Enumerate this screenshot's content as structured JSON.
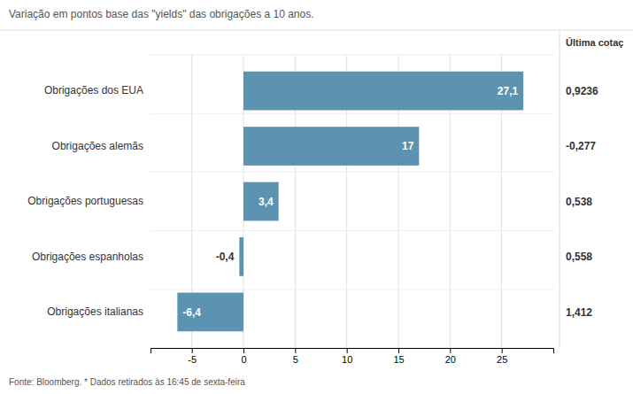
{
  "chart_data": {
    "type": "bar",
    "orientation": "horizontal",
    "subtitle": "Variação em pontos base das \"yields\" das obrigações a 10 anos.",
    "footer": "Fonte: Bloomberg.  * Dados retirados às 16:45 de sexta-feira",
    "categories": [
      "Obrigações dos EUA",
      "Obrigações alemãs",
      "Obrigações portuguesas",
      "Obrigações espanholas",
      "Obrigações italianas"
    ],
    "values": [
      27.1,
      17.0,
      3.4,
      -0.4,
      -6.4
    ],
    "value_labels": [
      "27,1",
      "17",
      "3,4",
      "-0,4",
      "-6,4"
    ],
    "data_labels": true,
    "color": "#5b93b0",
    "xlim": [
      -9,
      30
    ],
    "xticks": [
      -5,
      0,
      5,
      10,
      15,
      20,
      25
    ],
    "grid": true,
    "column_title": "Última cotaç",
    "column_values": [
      "0,9236",
      "-0,277",
      "0,538",
      "0,558",
      "1,412"
    ]
  }
}
